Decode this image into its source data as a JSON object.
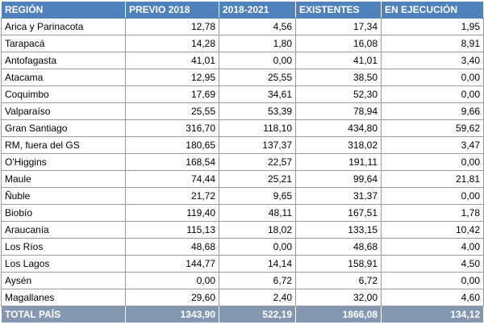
{
  "table": {
    "headers": [
      "REGIÓN",
      "PREVIO 2018",
      "2018-2021",
      "EXISTENTES",
      "EN EJECUCIÓN"
    ],
    "rows": [
      [
        "Arica y Parinacota",
        "12,78",
        "4,56",
        "17,34",
        "1,95"
      ],
      [
        "Tarapacá",
        "14,28",
        "1,80",
        "16,08",
        "8,91"
      ],
      [
        "Antofagasta",
        "41,01",
        "0,00",
        "41,01",
        "3,40"
      ],
      [
        "Atacama",
        "12,95",
        "25,55",
        "38,50",
        "0,00"
      ],
      [
        "Coquimbo",
        "17,69",
        "34,61",
        "52,30",
        "0,00"
      ],
      [
        "Valparaíso",
        "25,55",
        "53,39",
        "78,94",
        "9,66"
      ],
      [
        "Gran Santiago",
        "316,70",
        "118,10",
        "434,80",
        "59,62"
      ],
      [
        "RM, fuera del GS",
        "180,65",
        "137,37",
        "318,02",
        "3,47"
      ],
      [
        "O'Higgins",
        "168,54",
        "22,57",
        "191,11",
        "0,00"
      ],
      [
        "Maule",
        "74,44",
        "25,21",
        "99,64",
        "21,81"
      ],
      [
        "Ñuble",
        "21,72",
        "9,65",
        "31,37",
        "0,00"
      ],
      [
        "Biobío",
        "119,40",
        "48,11",
        "167,51",
        "1,78"
      ],
      [
        "Araucanía",
        "115,13",
        "18,02",
        "133,15",
        "10,42"
      ],
      [
        "Los Ríos",
        "48,68",
        "0,00",
        "48,68",
        "4,00"
      ],
      [
        "Los Lagos",
        "144,77",
        "14,14",
        "158,91",
        "4,50"
      ],
      [
        "Aysén",
        "0,00",
        "6,72",
        "6,72",
        "0,00"
      ],
      [
        "Magallanes",
        "29,60",
        "2,40",
        "32,00",
        "4,60"
      ]
    ],
    "total": [
      "TOTAL PAÍS",
      "1343,90",
      "522,19",
      "1866,08",
      "134,12"
    ]
  }
}
